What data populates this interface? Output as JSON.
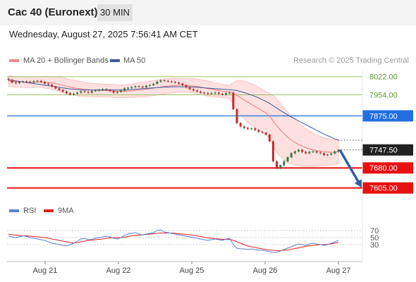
{
  "header": {
    "instrument": "Cac 40 (Euronext)",
    "timeframe": "30 MIN"
  },
  "datetime": "Wednesday, August 27, 2025 7:56:41 AM CET",
  "legend": {
    "items": [
      {
        "label": "MA 20 + Bollinger Bands",
        "color": "#f08a8a"
      },
      {
        "label": "MA 50",
        "color": "#3d5a99"
      }
    ],
    "credit": "Research © 2025 Trading Central"
  },
  "rsi_legend": {
    "items": [
      {
        "label": "RSI",
        "color": "#5b7fd0"
      },
      {
        "label": "9MA",
        "color": "#e02020"
      }
    ]
  },
  "colors": {
    "up": "#2e7d32",
    "down": "#c62828",
    "resistance_green": "#9bc268",
    "pivot_blue": "#1f6fe0",
    "support_red": "#e81010",
    "current": "#222222",
    "arrow": "#2f5ea8",
    "band_fill": "#fde1e1"
  },
  "chart_data": [
    {
      "type": "line",
      "title": "",
      "series_kind": "candlestick",
      "x_ticks": [
        "Aug 21",
        "Aug 22",
        "Aug 25",
        "Aug 26",
        "Aug 27"
      ],
      "ylim": [
        7575,
        8045
      ],
      "levels": [
        {
          "value": 8022.0,
          "label": "8022.00",
          "role": "resistance-2"
        },
        {
          "value": 7954.0,
          "label": "7954.00",
          "role": "resistance-1"
        },
        {
          "value": 7875.0,
          "label": "7875.00",
          "role": "pivot"
        },
        {
          "value": 7747.5,
          "label": "7747.50",
          "role": "current"
        },
        {
          "value": 7680.0,
          "label": "7680.00",
          "role": "support-1"
        },
        {
          "value": 7605.0,
          "label": "7605.00",
          "role": "support-2"
        }
      ],
      "projection": {
        "from": 7747.5,
        "to": 7605.0
      },
      "close": [
        8010,
        8000,
        7998,
        8002,
        8004,
        8003,
        8001,
        8005,
        8006,
        8002,
        7996,
        7992,
        7985,
        7978,
        7972,
        7966,
        7960,
        7955,
        7958,
        7962,
        7967,
        7965,
        7962,
        7968,
        7970,
        7972,
        7975,
        7972,
        7968,
        7962,
        7965,
        7970,
        7978,
        7980,
        7983,
        7986,
        7985,
        7982,
        7988,
        7990,
        7995,
        8003,
        8008,
        8006,
        8004,
        8002,
        8000,
        7996,
        7990,
        7982,
        7975,
        7970,
        7966,
        7962,
        7960,
        7958,
        7960,
        7962,
        7958,
        7955,
        7960,
        7962,
        7900,
        7848,
        7835,
        7830,
        7826,
        7828,
        7822,
        7815,
        7812,
        7805,
        7780,
        7705,
        7680,
        7690,
        7705,
        7720,
        7735,
        7742,
        7748,
        7740,
        7735,
        7740,
        7742,
        7738,
        7735,
        7728,
        7730,
        7734,
        7742,
        7747
      ],
      "ma20": [
        8006,
        8004,
        8003,
        8002,
        8002,
        8001,
        8001,
        8001,
        8002,
        8002,
        8001,
        8000,
        7998,
        7996,
        7993,
        7990,
        7986,
        7983,
        7980,
        7978,
        7976,
        7974,
        7973,
        7972,
        7971,
        7970,
        7970,
        7970,
        7969,
        7968,
        7967,
        7967,
        7967,
        7968,
        7969,
        7970,
        7972,
        7973,
        7975,
        7977,
        7979,
        7981,
        7983,
        7985,
        7987,
        7988,
        7989,
        7990,
        7990,
        7990,
        7989,
        7987,
        7985,
        7983,
        7980,
        7977,
        7975,
        7972,
        7970,
        7968,
        7966,
        7964,
        7960,
        7952,
        7943,
        7935,
        7926,
        7918,
        7910,
        7902,
        7894,
        7886,
        7874,
        7856,
        7838,
        7822,
        7808,
        7795,
        7785,
        7776,
        7768,
        7762,
        7756,
        7752,
        7748,
        7745,
        7743,
        7741,
        7740,
        7739,
        7739,
        7740
      ],
      "bb_width": [
        20,
        20,
        20,
        20,
        20,
        20,
        20,
        20,
        20,
        20,
        22,
        23,
        24,
        26,
        27,
        28,
        28,
        28,
        28,
        28,
        28,
        27,
        26,
        25,
        25,
        25,
        24,
        24,
        24,
        24,
        24,
        24,
        24,
        25,
        25,
        26,
        27,
        28,
        28,
        28,
        28,
        28,
        28,
        28,
        28,
        28,
        27,
        26,
        26,
        26,
        26,
        27,
        28,
        28,
        28,
        28,
        28,
        27,
        26,
        25,
        25,
        25,
        40,
        55,
        65,
        70,
        75,
        78,
        80,
        80,
        80,
        80,
        85,
        95,
        100,
        100,
        98,
        95,
        90,
        85,
        80,
        75,
        70,
        66,
        62,
        58,
        55,
        52,
        50,
        48,
        46,
        45
      ],
      "ma50": [
        8010,
        8008,
        8006,
        8004,
        8002,
        8000,
        7998,
        7996,
        7994,
        7992,
        7990,
        7988,
        7986,
        7984,
        7982,
        7980,
        7978,
        7976,
        7975,
        7974,
        7973,
        7972,
        7972,
        7972,
        7972,
        7972,
        7972,
        7972,
        7972,
        7972,
        7972,
        7972,
        7972,
        7973,
        7974,
        7975,
        7976,
        7977,
        7978,
        7979,
        7980,
        7981,
        7982,
        7983,
        7983,
        7984,
        7984,
        7984,
        7984,
        7984,
        7984,
        7983,
        7982,
        7981,
        7980,
        7979,
        7978,
        7977,
        7976,
        7975,
        7974,
        7973,
        7972,
        7970,
        7966,
        7962,
        7958,
        7953,
        7948,
        7942,
        7936,
        7929,
        7922,
        7913,
        7904,
        7895,
        7887,
        7879,
        7871,
        7864,
        7856,
        7849,
        7842,
        7835,
        7828,
        7821,
        7814,
        7807,
        7801,
        7795,
        7789,
        7784
      ]
    },
    {
      "type": "line",
      "title": "",
      "ylim": [
        0,
        100
      ],
      "levels": [
        70,
        50,
        30
      ],
      "series": [
        {
          "name": "RSI",
          "values": [
            55,
            52,
            50,
            52,
            55,
            53,
            50,
            48,
            46,
            44,
            42,
            38,
            34,
            32,
            30,
            28,
            26,
            30,
            34,
            40,
            46,
            48,
            44,
            45,
            48,
            50,
            52,
            54,
            52,
            48,
            46,
            50,
            56,
            60,
            62,
            64,
            60,
            58,
            60,
            62,
            64,
            70,
            72,
            66,
            64,
            62,
            60,
            58,
            56,
            54,
            52,
            50,
            48,
            46,
            44,
            42,
            44,
            46,
            44,
            42,
            46,
            48,
            30,
            20,
            18,
            18,
            16,
            18,
            16,
            15,
            14,
            12,
            10,
            8,
            8,
            12,
            16,
            20,
            24,
            28,
            32,
            30,
            28,
            32,
            34,
            32,
            30,
            28,
            30,
            34,
            38,
            42
          ]
        },
        {
          "name": "9MA",
          "values": [
            60,
            58,
            57,
            56,
            55,
            55,
            54,
            53,
            52,
            51,
            50,
            48,
            46,
            44,
            42,
            40,
            38,
            36,
            35,
            36,
            38,
            40,
            42,
            43,
            44,
            45,
            46,
            48,
            49,
            50,
            50,
            50,
            51,
            53,
            55,
            56,
            57,
            58,
            59,
            60,
            61,
            62,
            63,
            63,
            63,
            63,
            62,
            61,
            60,
            59,
            58,
            57,
            55,
            53,
            51,
            49,
            48,
            47,
            46,
            45,
            45,
            45,
            42,
            38,
            34,
            30,
            26,
            24,
            22,
            20,
            18,
            16,
            15,
            14,
            13,
            13,
            14,
            15,
            17,
            19,
            21,
            23,
            25,
            27,
            28,
            29,
            30,
            30,
            31,
            32,
            34,
            36
          ]
        }
      ]
    }
  ]
}
